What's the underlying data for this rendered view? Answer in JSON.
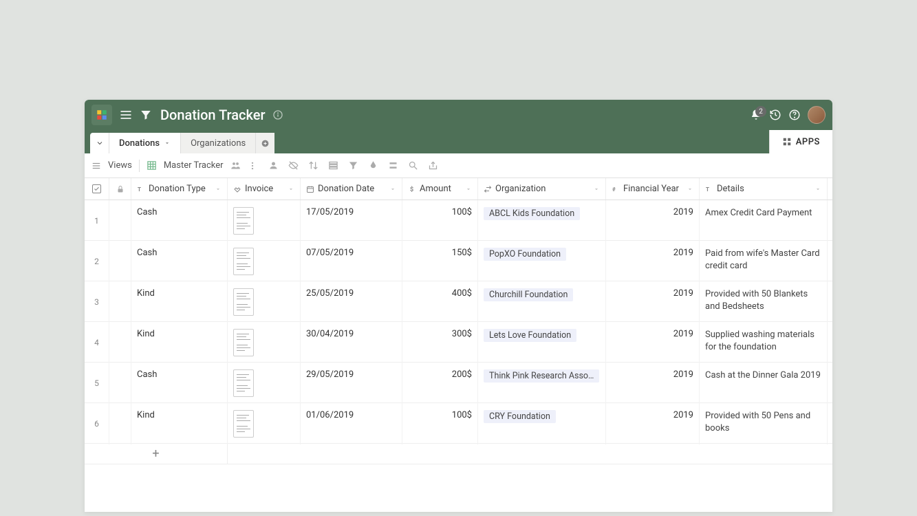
{
  "header": {
    "title": "Donation Tracker",
    "notification_count": "2"
  },
  "tabs": {
    "items": [
      "Donations",
      "Organizations"
    ]
  },
  "apps_label": "APPS",
  "toolbar": {
    "views_label": "Views",
    "view_name": "Master Tracker"
  },
  "columns": {
    "donation_type": "Donation Type",
    "invoice": "Invoice",
    "donation_date": "Donation Date",
    "amount": "Amount",
    "organization": "Organization",
    "financial_year": "Financial Year",
    "details": "Details"
  },
  "rows": [
    {
      "n": "1",
      "type": "Cash",
      "date": "17/05/2019",
      "amount": "100$",
      "org": "ABCL Kids Foundation",
      "year": "2019",
      "details": "Amex Credit Card Payment"
    },
    {
      "n": "2",
      "type": "Cash",
      "date": "07/05/2019",
      "amount": "150$",
      "org": "PopXO Foundation",
      "year": "2019",
      "details": "Paid from wife's Master Card credit card"
    },
    {
      "n": "3",
      "type": "Kind",
      "date": "25/05/2019",
      "amount": "400$",
      "org": "Churchill Foundation",
      "year": "2019",
      "details": "Provided with 50 Blankets and Bedsheets"
    },
    {
      "n": "4",
      "type": "Kind",
      "date": "30/04/2019",
      "amount": "300$",
      "org": "Lets Love Foundation",
      "year": "2019",
      "details": "Supplied washing materials for the foundation"
    },
    {
      "n": "5",
      "type": "Cash",
      "date": "29/05/2019",
      "amount": "200$",
      "org": "Think Pink Research Asso…",
      "year": "2019",
      "details": "Cash at the Dinner Gala 2019"
    },
    {
      "n": "6",
      "type": "Kind",
      "date": "01/06/2019",
      "amount": "100$",
      "org": "CRY Foundation",
      "year": "2019",
      "details": "Provided with 50 Pens and books"
    }
  ]
}
